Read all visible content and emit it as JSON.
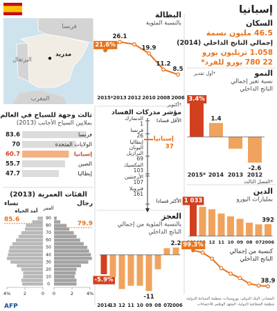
{
  "title": "إسبانيا",
  "population": {
    "label": "السكان",
    "value": "46.5 مليون نسمة"
  },
  "gdp": {
    "label": "إجمالي الناتج الداخلي (2014)",
    "total": "1.058 تريليون يورو",
    "per_capita": "22 780 يورو للفرد*"
  },
  "map": {
    "labels": [
      "فرنسا",
      "البرتغال",
      "مدريد",
      "المغرب"
    ]
  },
  "source": [
    "المصادر: البنك الدولي، يوروستات، منظمة السياحة الدولية،",
    "منظمة الشفافية الدولية، المعهد الوطني للاحصاءات"
  ],
  "logo": "AFP",
  "chart_data": [
    {
      "type": "line",
      "title": "البطالة",
      "subtitle": "بالنسبة المئوية",
      "categories": [
        "2015*",
        "2013",
        "2012",
        "2010",
        "2008",
        "2006"
      ],
      "values": [
        21.6,
        26.1,
        24.8,
        19.9,
        11.2,
        8.5
      ],
      "value_labels": [
        "21.6%",
        "26.1",
        null,
        "19.9",
        "11.2",
        "8.5"
      ],
      "note": "*أكتوبر",
      "color": "#e8731c",
      "ylim": [
        0,
        30
      ]
    },
    {
      "type": "rank",
      "title": "مؤشر مدركات الفساد",
      "top_label": "الأقل فسادا",
      "bottom_label": "الأكثر فسادا",
      "categories": [
        "الدنمارك",
        "فرنسا",
        "إسبانيا",
        "إيطاليا",
        "اليونان",
        "البرازيل",
        "المكسيك",
        "الأرجنتين",
        "فنزويلا"
      ],
      "values": [
        1,
        26,
        37,
        69,
        69,
        69,
        103,
        107,
        161
      ],
      "colors": [
        "#555555",
        "#555555",
        "#e8731c",
        "#555555",
        "#555555",
        "#555555",
        "#555555",
        "#555555",
        "#555555"
      ],
      "ylim": [
        1,
        161
      ]
    },
    {
      "type": "bar",
      "title": "العجز",
      "subtitle": [
        "بالنسبة المئوية من إجمالي",
        "الناتج الداخلي"
      ],
      "categories": [
        "2014",
        "13",
        "12",
        "11",
        "10",
        "09",
        "08",
        "07",
        "2006"
      ],
      "values": [
        -5.9,
        -6.8,
        -10.4,
        -9.4,
        -9.4,
        -11,
        -4.4,
        2,
        2.2
      ],
      "value_labels": [
        "-5.9%",
        null,
        null,
        null,
        null,
        "-11",
        null,
        null,
        "2.2"
      ],
      "colors": [
        "#d2401f",
        "#f0a35e",
        "#f0a35e",
        "#f0a35e",
        "#f0a35e",
        "#f0a35e",
        "#f0a35e",
        "#f0a35e",
        "#f0a35e"
      ],
      "ylim": [
        -12,
        4
      ]
    },
    {
      "type": "bar",
      "title": "النمو",
      "subtitle": [
        "نسبة تغير إجمالي",
        "الناتج الداخلي"
      ],
      "categories": [
        "2015*",
        "2014",
        "2013",
        "2012"
      ],
      "values": [
        3.4,
        1.4,
        -1.2,
        -2.6
      ],
      "value_labels": [
        "3.4%",
        "1.4",
        null,
        "-2.6"
      ],
      "notes": [
        "*أول تقدير",
        "*الفصل الثالث"
      ],
      "colors": [
        "#d2401f",
        "#f0a35e",
        "#f0a35e",
        "#f0a35e"
      ],
      "ylim": [
        -3,
        4
      ]
    },
    {
      "type": "bar",
      "title": "الدين",
      "subtitle": "بمليارات اليورو",
      "categories": [
        "2014",
        "13",
        "12",
        "11",
        "10",
        "09",
        "08",
        "07",
        "2006"
      ],
      "values": [
        1033,
        966,
        884,
        743,
        650,
        568,
        440,
        384,
        392
      ],
      "value_labels": [
        "1 033",
        null,
        null,
        null,
        null,
        null,
        null,
        null,
        "392"
      ],
      "colors": [
        "#d2401f",
        "#f0a35e",
        "#f0a35e",
        "#f0a35e",
        "#f0a35e",
        "#f0a35e",
        "#f0a35e",
        "#f0a35e",
        "#f0a35e"
      ],
      "ylim": [
        0,
        1100
      ]
    },
    {
      "type": "line",
      "title": [
        "كنسبة من إجمالي",
        "الناتج الداخلي"
      ],
      "values": [
        99.3,
        95.5,
        85.4,
        69.2,
        60.1,
        52.7,
        43.5,
        40,
        38.9
      ],
      "value_labels": [
        "99.3%",
        null,
        null,
        null,
        null,
        null,
        null,
        null,
        "38.9"
      ],
      "color": "#e8731c",
      "ylim": [
        30,
        100
      ]
    },
    {
      "type": "hbar",
      "title": "ثالث وجهة للسياح في العالم",
      "subtitle": "بملايين السياح الأجانب (2013)",
      "categories": [
        "فرنسا",
        "الولايات المتحدة",
        "إسبانيا",
        "الصين",
        "إيطاليا"
      ],
      "values": [
        83.6,
        70,
        60.7,
        55.7,
        47.7
      ],
      "colors": [
        "#dcdcdc",
        "#dcdcdc",
        "#f5b183",
        "#dcdcdc",
        "#dcdcdc"
      ],
      "xlim": [
        0,
        90
      ]
    },
    {
      "type": "pyramid",
      "title": "الفئات العمرية (2013)",
      "series": [
        {
          "name": "نساء",
          "color": "#b8b8b8",
          "values": [
            2.3,
            2.4,
            2.2,
            2.2,
            2.4,
            2.9,
            3.6,
            4.0,
            3.9,
            3.8,
            3.7,
            3.4,
            3.0,
            2.7,
            2.4,
            2.0,
            1.9,
            1.2,
            0.6
          ]
        },
        {
          "name": "رجال",
          "color": "#a3a3a3",
          "values": [
            2.5,
            2.5,
            2.3,
            2.4,
            2.5,
            3.0,
            3.8,
            4.2,
            4.1,
            3.9,
            3.7,
            3.3,
            2.9,
            2.5,
            2.2,
            1.7,
            1.4,
            0.7,
            0.3
          ]
        }
      ],
      "age_label": "العمر",
      "age_ticks": [
        0,
        10,
        20,
        30,
        40,
        50,
        60,
        70,
        80,
        90
      ],
      "life_expectancy": {
        "label": "أمد الحياة",
        "values": [
          85.6,
          79.9
        ],
        "color": "#e8731c"
      },
      "xlim": [
        0,
        4
      ],
      "xticks": [
        {
          "value": 4,
          "label": "4%"
        },
        2,
        0
      ]
    }
  ]
}
